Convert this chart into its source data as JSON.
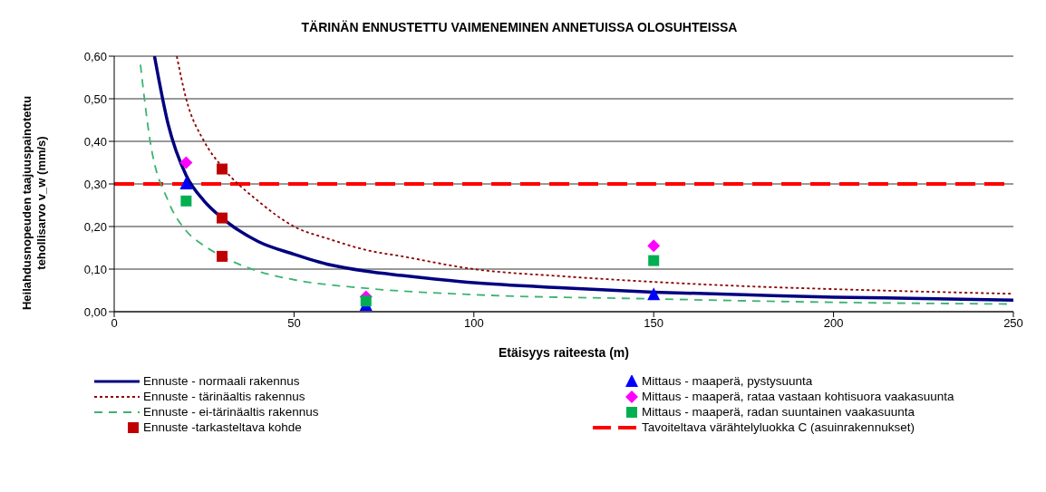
{
  "chart_data": {
    "type": "line",
    "title": "TÄRINÄN ENNUSTETTU VAIMENEMINEN ANNETUISSA OLOSUHTEISSA",
    "xlabel": "Etäisyys raiteesta (m)",
    "ylabel": "Heilahdusnopeuden taajuuspainotettu tehollisarvo v_w (mm/s)",
    "xlim": [
      0,
      250
    ],
    "xticks": [
      0,
      50,
      100,
      150,
      200,
      250
    ],
    "ylim": [
      0,
      0.6
    ],
    "yticks": [
      {
        "value": 0,
        "label": "0,00"
      },
      {
        "value": 0.1,
        "label": "0,10"
      },
      {
        "value": 0.2,
        "label": "0,20"
      },
      {
        "value": 0.3,
        "label": "0,30"
      },
      {
        "value": 0.4,
        "label": "0,40"
      },
      {
        "value": 0.5,
        "label": "0,50"
      },
      {
        "value": 0.6,
        "label": "0,60"
      }
    ],
    "grid": "y",
    "legend": "bottom",
    "series": [
      {
        "name": "Ennuste - normaali rakennus",
        "color": "#000080",
        "line_style": "solid",
        "marker": "none",
        "x": [
          11.2,
          15,
          20,
          25,
          30,
          40,
          50,
          60,
          70,
          80,
          100,
          125,
          150,
          175,
          200,
          225,
          250
        ],
        "values": [
          0.6,
          0.44,
          0.32,
          0.26,
          0.22,
          0.165,
          0.135,
          0.11,
          0.095,
          0.085,
          0.068,
          0.056,
          0.046,
          0.04,
          0.034,
          0.031,
          0.027
        ]
      },
      {
        "name": "Ennuste - tärinäaltis rakennus",
        "color": "#8b0000",
        "line_style": "dotted",
        "marker": "none",
        "x": [
          17.4,
          20,
          25,
          30,
          40,
          50,
          60,
          70,
          80,
          100,
          125,
          150,
          175,
          200,
          250
        ],
        "values": [
          0.6,
          0.5,
          0.4,
          0.34,
          0.26,
          0.2,
          0.17,
          0.145,
          0.13,
          0.1,
          0.083,
          0.07,
          0.06,
          0.053,
          0.042
        ]
      },
      {
        "name": "Ennuste - ei-tärinäaltis rakennus",
        "color": "#3cb371",
        "line_style": "dashed",
        "marker": "none",
        "x": [
          7.3,
          10,
          15,
          20,
          25,
          30,
          40,
          50,
          70,
          100,
          150,
          200,
          250
        ],
        "values": [
          0.58,
          0.4,
          0.26,
          0.19,
          0.155,
          0.13,
          0.095,
          0.075,
          0.055,
          0.04,
          0.03,
          0.022,
          0.018
        ]
      },
      {
        "name": "Ennuste -tarkasteltava kohde",
        "type": "scatter",
        "color": "#c00000",
        "marker": "square",
        "x": [
          30,
          30,
          30
        ],
        "values": [
          0.335,
          0.22,
          0.13
        ]
      },
      {
        "name": "Mittaus - maaperä, pystysuunta",
        "type": "scatter",
        "color": "#0000ff",
        "marker": "triangle",
        "x": [
          20,
          70,
          150
        ],
        "values": [
          0.3,
          0.015,
          0.04
        ]
      },
      {
        "name": "Mittaus - maaperä, rataa vastaan kohtisuora vaakasuunta",
        "type": "scatter",
        "color": "#ff00ff",
        "marker": "diamond",
        "x": [
          20,
          70,
          150
        ],
        "values": [
          0.35,
          0.035,
          0.155
        ]
      },
      {
        "name": "Mittaus - maaperä, radan suuntainen vaakasuunta",
        "type": "scatter",
        "color": "#00b050",
        "marker": "square",
        "x": [
          20,
          70,
          150
        ],
        "values": [
          0.26,
          0.025,
          0.12
        ]
      }
    ],
    "ref_lines": [
      {
        "axis": "y",
        "value": 0.3,
        "label": "Tavoiteltava värähtelyluokka C (asuinrakennukset)",
        "color": "#ff0000",
        "line_style": "dashed"
      }
    ]
  }
}
